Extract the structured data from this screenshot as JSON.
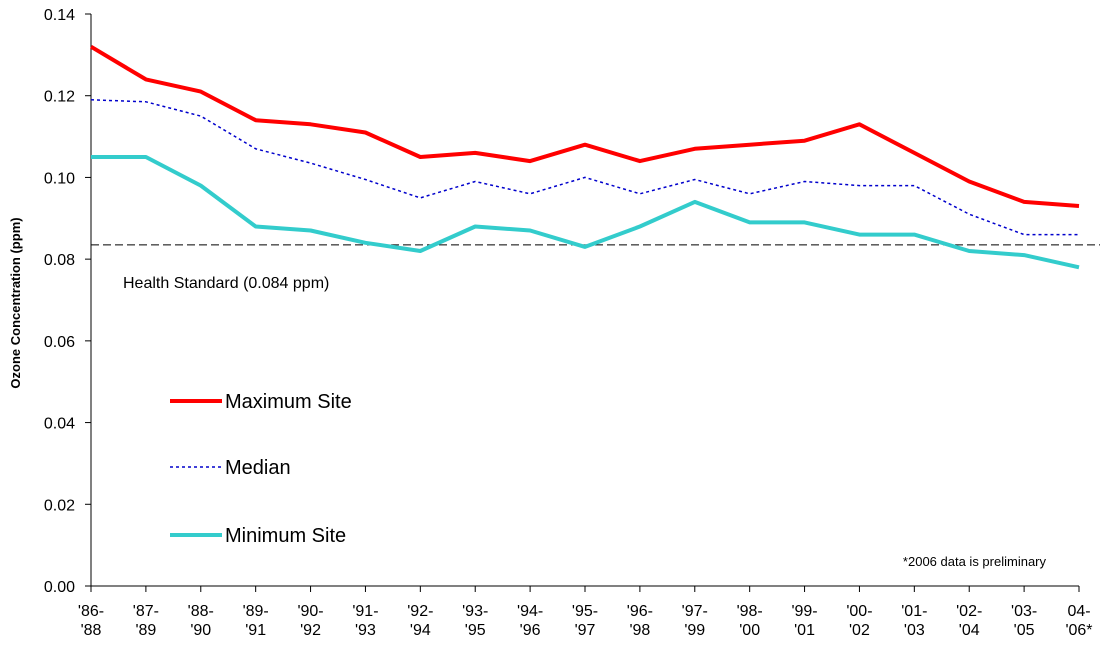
{
  "chart_data": {
    "type": "line",
    "title": "",
    "xlabel": "",
    "ylabel": "Ozone Concentration (ppm)",
    "ylim": [
      0,
      0.14
    ],
    "yticks": [
      "0.00",
      "0.02",
      "0.04",
      "0.06",
      "0.08",
      "0.10",
      "0.12",
      "0.14"
    ],
    "categories": [
      [
        "'86-",
        "'88"
      ],
      [
        "'87-",
        "'89"
      ],
      [
        "'88-",
        "'90"
      ],
      [
        "'89-",
        "'91"
      ],
      [
        "'90-",
        "'92"
      ],
      [
        "'91-",
        "'93"
      ],
      [
        "'92-",
        "'94"
      ],
      [
        "'93-",
        "'95"
      ],
      [
        "'94-",
        "'96"
      ],
      [
        "'95-",
        "'97"
      ],
      [
        "'96-",
        "'98"
      ],
      [
        "'97-",
        "'99"
      ],
      [
        "'98-",
        "'00"
      ],
      [
        "'99-",
        "'01"
      ],
      [
        "'00-",
        "'02"
      ],
      [
        "'01-",
        "'03"
      ],
      [
        "'02-",
        "'04"
      ],
      [
        "'03-",
        "'05"
      ],
      [
        "04-",
        "'06*"
      ]
    ],
    "series": [
      {
        "name": "Maximum Site",
        "color": "#ff0000",
        "style": "solid",
        "values": [
          0.132,
          0.124,
          0.121,
          0.114,
          0.113,
          0.111,
          0.105,
          0.106,
          0.104,
          0.108,
          0.104,
          0.107,
          0.108,
          0.109,
          0.113,
          0.106,
          0.099,
          0.094,
          0.093
        ]
      },
      {
        "name": "Median",
        "color": "#0000cc",
        "style": "dotted",
        "values": [
          0.119,
          0.1185,
          0.115,
          0.107,
          0.1035,
          0.0995,
          0.095,
          0.099,
          0.096,
          0.1,
          0.096,
          0.0995,
          0.096,
          0.099,
          0.098,
          0.098,
          0.091,
          0.086,
          0.086
        ]
      },
      {
        "name": "Minimum Site",
        "color": "#33cccc",
        "style": "solid",
        "values": [
          0.105,
          0.105,
          0.098,
          0.088,
          0.087,
          0.084,
          0.082,
          0.088,
          0.087,
          0.083,
          0.088,
          0.094,
          0.089,
          0.089,
          0.086,
          0.086,
          0.082,
          0.081,
          0.078
        ]
      }
    ],
    "reference_line": {
      "value": 0.0835,
      "label": "Health Standard (0.084 ppm)",
      "color": "#000000",
      "style": "dashed"
    },
    "footnote": "*2006 data is preliminary",
    "grid": false,
    "legend_position": "left"
  }
}
